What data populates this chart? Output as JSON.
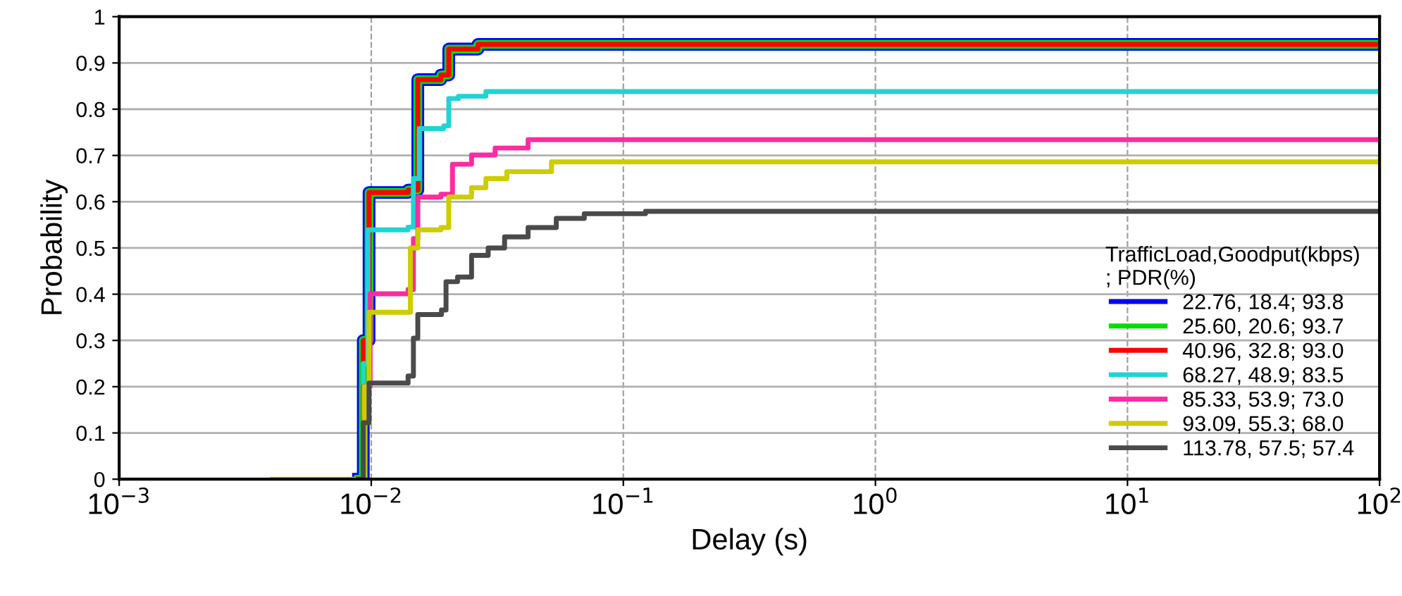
{
  "chart_data": {
    "type": "step",
    "xlabel": "Delay (s)",
    "ylabel": "Probability",
    "log": "x",
    "grid": true,
    "legend": "lower right",
    "legend_title": "TrafficLoad,Goodput(kbps)\n; PDR(%)",
    "xlim": [
      0.001,
      100
    ],
    "ylim": [
      0,
      1
    ],
    "xticks": [
      {
        "value": 0.001,
        "label": "10$^{−3}$"
      },
      {
        "value": 0.01,
        "label": "10$^{−2}$"
      },
      {
        "value": 0.1,
        "label": "10$^{−1}$"
      },
      {
        "value": 1,
        "label": "10$^{0}$"
      },
      {
        "value": 10,
        "label": "10$^{1}$"
      },
      {
        "value": 100,
        "label": "10$^{2}$"
      }
    ],
    "yticks": [
      0,
      0.1,
      0.2,
      0.3,
      0.4,
      0.5,
      0.6,
      0.7,
      0.8,
      0.9,
      1
    ],
    "series": [
      {
        "name": "22.76, 18.4; 93.8",
        "color": "#0000ff",
        "x": [
          0.0089,
          0.0093,
          0.0098,
          0.014,
          0.0153,
          0.0189,
          0.0203,
          0.0265,
          100
        ],
        "values": [
          0,
          0.3,
          0.62,
          0.625,
          0.864,
          0.874,
          0.93,
          0.94,
          0.94
        ]
      },
      {
        "name": "25.60, 20.6; 93.7",
        "color": "#00dd00",
        "x": [
          0.0089,
          0.0093,
          0.0098,
          0.014,
          0.0153,
          0.0189,
          0.0203,
          0.0265,
          100
        ],
        "values": [
          0,
          0.3,
          0.62,
          0.625,
          0.864,
          0.874,
          0.93,
          0.94,
          0.94
        ]
      },
      {
        "name": "40.96, 32.8; 93.0",
        "color": "#ff0000",
        "x": [
          0.0089,
          0.0093,
          0.0098,
          0.014,
          0.0153,
          0.0189,
          0.0203,
          0.0265,
          100
        ],
        "values": [
          0,
          0.3,
          0.62,
          0.625,
          0.864,
          0.874,
          0.93,
          0.94,
          0.94
        ]
      },
      {
        "name": "68.27, 48.9; 83.5",
        "color": "#22d3d3",
        "x": [
          0.0089,
          0.0093,
          0.0097,
          0.014,
          0.0147,
          0.0155,
          0.0194,
          0.0203,
          0.0222,
          0.0285,
          100
        ],
        "values": [
          0,
          0.25,
          0.539,
          0.545,
          0.65,
          0.758,
          0.764,
          0.823,
          0.828,
          0.838,
          0.838
        ]
      },
      {
        "name": "85.33, 53.9; 73.0",
        "color": "#ff2ca0",
        "x": [
          0.0089,
          0.0093,
          0.0099,
          0.014,
          0.0147,
          0.0153,
          0.0189,
          0.021,
          0.025,
          0.031,
          0.0419,
          100
        ],
        "values": [
          0,
          0.2,
          0.401,
          0.41,
          0.52,
          0.61,
          0.616,
          0.681,
          0.701,
          0.716,
          0.734,
          0.734
        ]
      },
      {
        "name": "93.09, 55.3; 68.0",
        "color": "#cccc00",
        "x": [
          0.00405,
          0.0089,
          0.0094,
          0.0098,
          0.0143,
          0.0153,
          0.0189,
          0.0203,
          0.025,
          0.0285,
          0.0345,
          0.0519,
          100
        ],
        "values": [
          0,
          0,
          0.2,
          0.361,
          0.5,
          0.539,
          0.544,
          0.61,
          0.63,
          0.65,
          0.665,
          0.686,
          0.686
        ]
      },
      {
        "name": "113.78, 57.5; 57.4",
        "color": "#4a4a4a",
        "x": [
          0.0089,
          0.0093,
          0.0098,
          0.014,
          0.0147,
          0.0153,
          0.019,
          0.0198,
          0.022,
          0.025,
          0.0291,
          0.0338,
          0.0419,
          0.0542,
          0.07,
          0.1225,
          100
        ],
        "values": [
          0,
          0.122,
          0.208,
          0.223,
          0.305,
          0.356,
          0.366,
          0.427,
          0.437,
          0.484,
          0.5,
          0.524,
          0.544,
          0.564,
          0.574,
          0.579,
          0.579
        ]
      }
    ]
  }
}
